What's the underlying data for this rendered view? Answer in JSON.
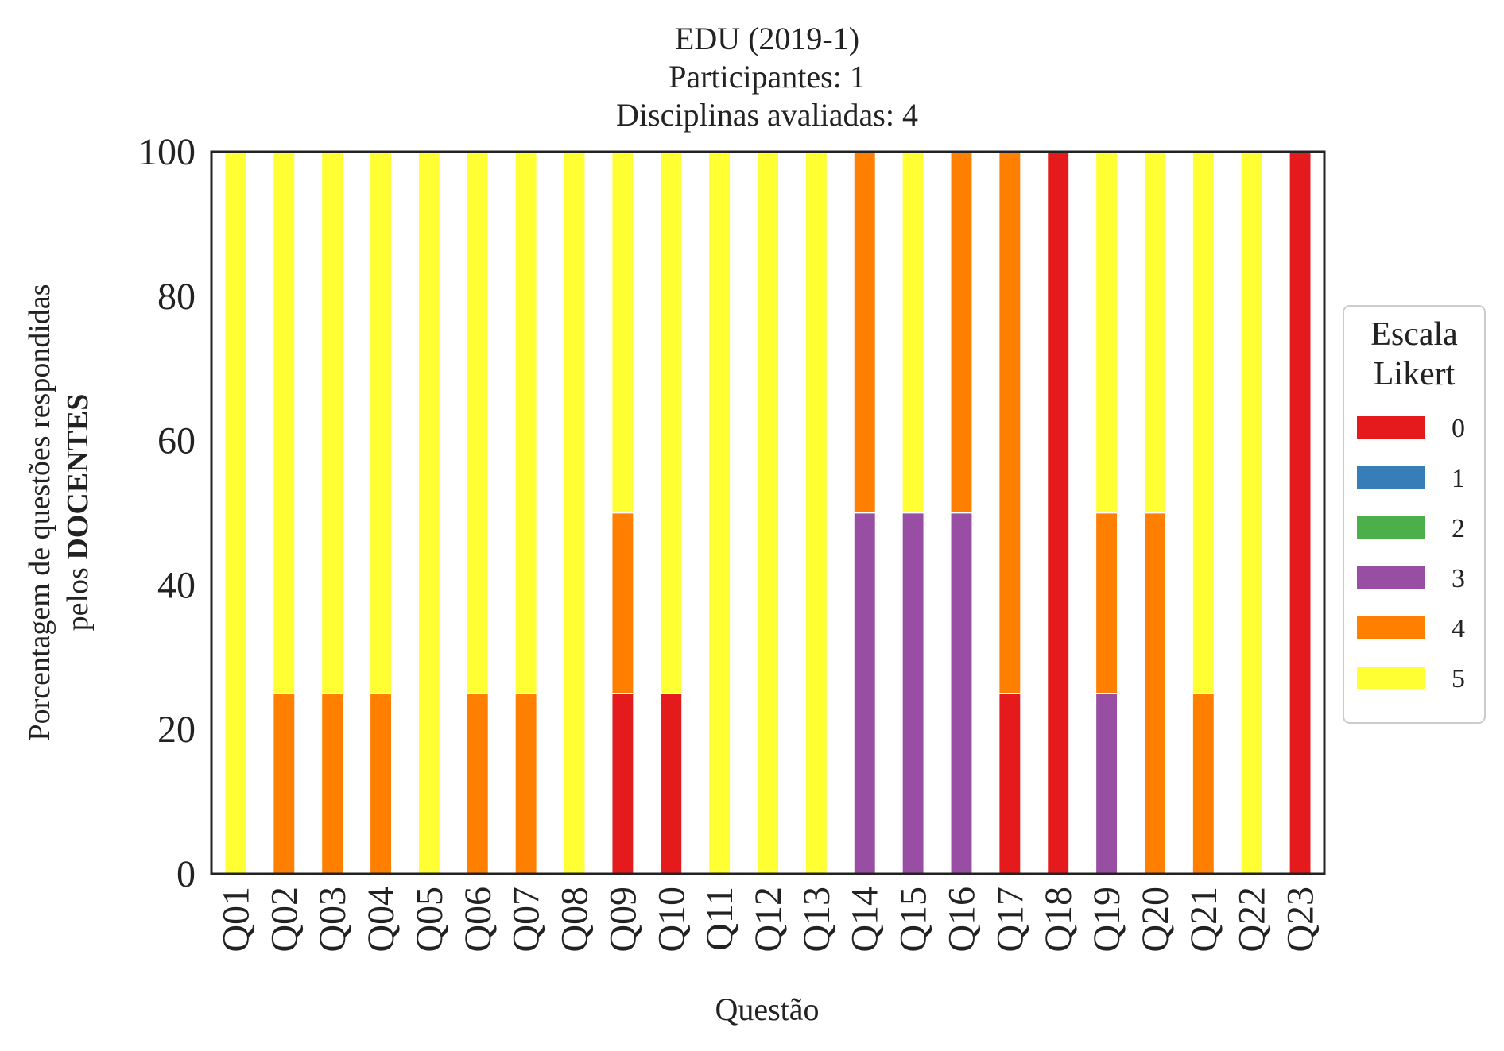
{
  "chart_data": {
    "type": "bar",
    "stacked": true,
    "title_lines": [
      "EDU (2019-1)",
      "Participantes: 1",
      "Disciplinas avaliadas: 4"
    ],
    "xlabel": "Questão",
    "ylabel_line1": "Porcentagem de questões respondidas",
    "ylabel_line2_prefix": "pelos ",
    "ylabel_line2_bold": "DOCENTES",
    "ylim": [
      0,
      100
    ],
    "yticks": [
      0,
      20,
      40,
      60,
      80,
      100
    ],
    "categories": [
      "Q01",
      "Q02",
      "Q03",
      "Q04",
      "Q05",
      "Q06",
      "Q07",
      "Q08",
      "Q09",
      "Q10",
      "Q11",
      "Q12",
      "Q13",
      "Q14",
      "Q15",
      "Q16",
      "Q17",
      "Q18",
      "Q19",
      "Q20",
      "Q21",
      "Q22",
      "Q23"
    ],
    "legend_title_lines": [
      "Escala",
      "Likert"
    ],
    "legend_position": "right",
    "series": [
      {
        "name": "0",
        "color": "#e41a1c",
        "values": [
          0,
          0,
          0,
          0,
          0,
          0,
          0,
          0,
          25,
          25,
          0,
          0,
          0,
          0,
          0,
          0,
          25,
          100,
          0,
          0,
          0,
          0,
          100
        ]
      },
      {
        "name": "1",
        "color": "#377eb8",
        "values": [
          0,
          0,
          0,
          0,
          0,
          0,
          0,
          0,
          0,
          0,
          0,
          0,
          0,
          0,
          0,
          0,
          0,
          0,
          0,
          0,
          0,
          0,
          0
        ]
      },
      {
        "name": "2",
        "color": "#4daf4a",
        "values": [
          0,
          0,
          0,
          0,
          0,
          0,
          0,
          0,
          0,
          0,
          0,
          0,
          0,
          0,
          0,
          0,
          0,
          0,
          0,
          0,
          0,
          0,
          0
        ]
      },
      {
        "name": "3",
        "color": "#984ea3",
        "values": [
          0,
          0,
          0,
          0,
          0,
          0,
          0,
          0,
          0,
          0,
          0,
          0,
          0,
          50,
          50,
          50,
          0,
          0,
          25,
          0,
          0,
          0,
          0
        ]
      },
      {
        "name": "4",
        "color": "#ff7f00",
        "values": [
          0,
          25,
          25,
          25,
          0,
          25,
          25,
          0,
          25,
          0,
          0,
          0,
          0,
          50,
          0,
          50,
          75,
          0,
          25,
          50,
          25,
          0,
          0
        ]
      },
      {
        "name": "5",
        "color": "#ffff33",
        "values": [
          100,
          75,
          75,
          75,
          100,
          75,
          75,
          100,
          50,
          75,
          100,
          100,
          100,
          0,
          50,
          0,
          0,
          0,
          50,
          50,
          75,
          100,
          0
        ]
      }
    ]
  }
}
